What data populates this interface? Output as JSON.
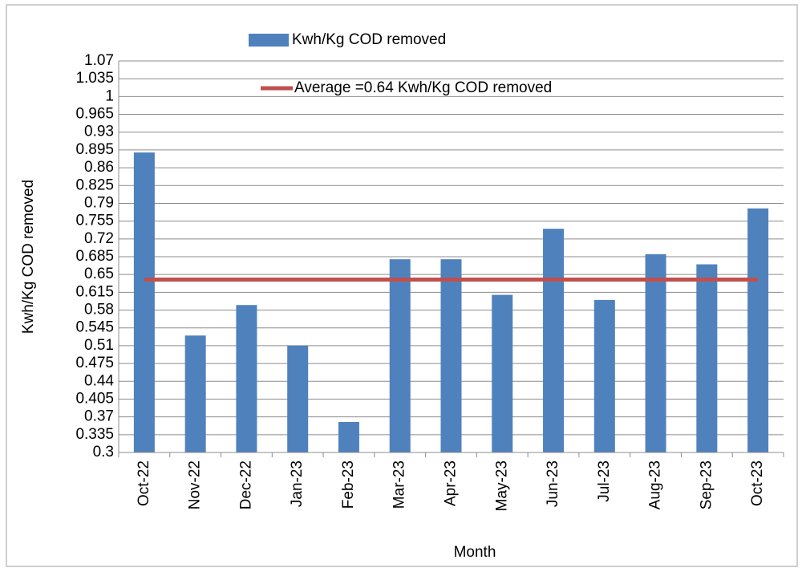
{
  "chart_data": {
    "type": "bar",
    "x_label": "Month",
    "y_label": "Kwh/Kg COD removed",
    "categories": [
      "Oct-22",
      "Nov-22",
      "Dec-22",
      "Jan-23",
      "Feb-23",
      "Mar-23",
      "Apr-23",
      "May-23",
      "Jun-23",
      "Jul-23",
      "Aug-23",
      "Sep-23",
      "Oct-23"
    ],
    "series": [
      {
        "name": "Kwh/Kg COD removed",
        "type": "bar",
        "color": "#4f81bd",
        "values": [
          0.89,
          0.53,
          0.59,
          0.51,
          0.36,
          0.68,
          0.68,
          0.61,
          0.74,
          0.6,
          0.69,
          0.67,
          0.78
        ]
      },
      {
        "name": "Average =0.64 Kwh/Kg COD removed",
        "type": "line",
        "color": "#c0504d",
        "values": [
          0.64,
          0.64,
          0.64,
          0.64,
          0.64,
          0.64,
          0.64,
          0.64,
          0.64,
          0.64,
          0.64,
          0.64,
          0.64
        ]
      }
    ],
    "ylim": [
      0.3,
      1.07
    ],
    "yticks": [
      0.3,
      0.335,
      0.37,
      0.405,
      0.44,
      0.475,
      0.51,
      0.545,
      0.58,
      0.615,
      0.65,
      0.685,
      0.72,
      0.755,
      0.79,
      0.825,
      0.86,
      0.895,
      0.93,
      0.965,
      1,
      1.035,
      1.07
    ],
    "grid": true
  }
}
